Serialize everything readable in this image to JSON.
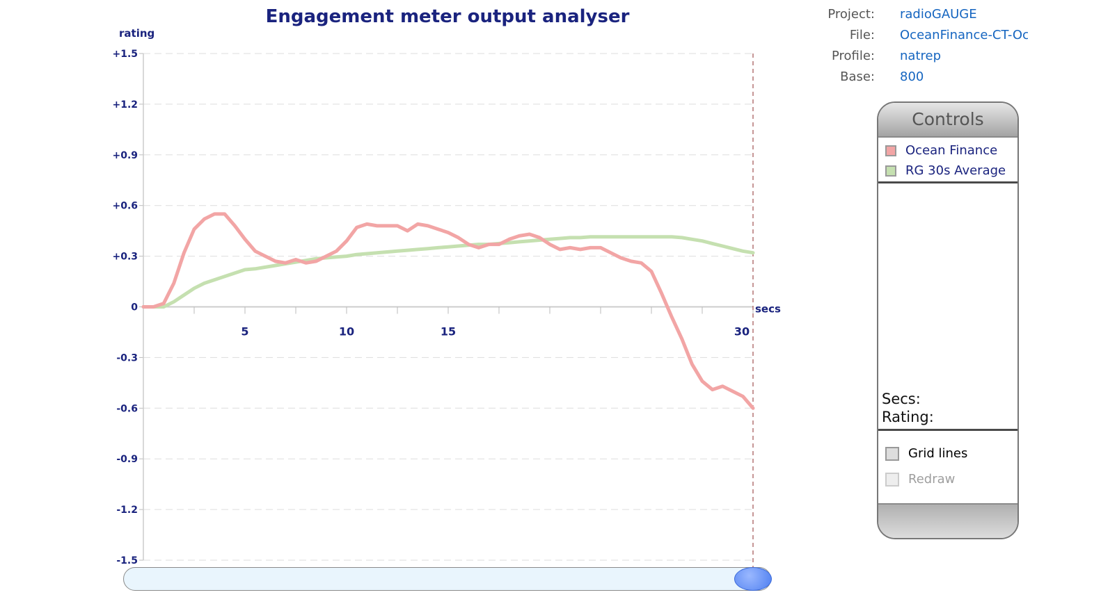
{
  "chart_data": {
    "type": "line",
    "title": "Engagement meter output analyser",
    "ylabel": "rating",
    "xlabel": "secs",
    "ylim": [
      -1.5,
      1.5
    ],
    "xlim": [
      0,
      30
    ],
    "y_ticks": [
      {
        "value": 1.5,
        "label": "+1.5"
      },
      {
        "value": 1.2,
        "label": "+1.2"
      },
      {
        "value": 0.9,
        "label": "+0.9"
      },
      {
        "value": 0.6,
        "label": "+0.6"
      },
      {
        "value": 0.3,
        "label": "+0.3"
      },
      {
        "value": 0,
        "label": "0"
      },
      {
        "value": -0.3,
        "label": "-0.3"
      },
      {
        "value": -0.6,
        "label": "-0.6"
      },
      {
        "value": -0.9,
        "label": "-0.9"
      },
      {
        "value": -1.2,
        "label": "-1.2"
      },
      {
        "value": -1.5,
        "label": "-1.5"
      }
    ],
    "x_ticks": [
      2.5,
      5,
      7.5,
      10,
      12.5,
      15,
      17.5,
      20,
      22.5,
      25,
      27.5,
      30
    ],
    "x_tick_labels": [
      {
        "value": 5,
        "label": "5"
      },
      {
        "value": 10,
        "label": "10"
      },
      {
        "value": 15,
        "label": "15"
      },
      {
        "value": 30,
        "label": "30"
      }
    ],
    "grid": true,
    "cursor_x": 30,
    "series": [
      {
        "name": "Ocean Finance",
        "color": "#f2a5a5",
        "x": [
          0,
          0.5,
          1,
          1.5,
          2,
          2.5,
          3,
          3.5,
          4,
          4.5,
          5,
          5.5,
          6,
          6.5,
          7,
          7.5,
          8,
          8.5,
          9,
          9.5,
          10,
          10.5,
          11,
          11.5,
          12,
          12.5,
          13,
          13.5,
          14,
          14.5,
          15,
          15.5,
          16,
          16.5,
          17,
          17.5,
          18,
          18.5,
          19,
          19.5,
          20,
          20.5,
          21,
          21.5,
          22,
          22.5,
          23,
          23.5,
          24,
          24.5,
          25,
          25.5,
          26,
          26.5,
          27,
          27.5,
          28,
          28.5,
          29,
          29.5,
          30
        ],
        "values": [
          0,
          0,
          0.02,
          0.14,
          0.32,
          0.46,
          0.52,
          0.55,
          0.55,
          0.48,
          0.4,
          0.33,
          0.3,
          0.27,
          0.26,
          0.28,
          0.26,
          0.27,
          0.3,
          0.33,
          0.39,
          0.47,
          0.49,
          0.48,
          0.48,
          0.48,
          0.45,
          0.49,
          0.48,
          0.46,
          0.44,
          0.41,
          0.37,
          0.35,
          0.37,
          0.37,
          0.4,
          0.42,
          0.43,
          0.41,
          0.37,
          0.34,
          0.35,
          0.34,
          0.35,
          0.35,
          0.32,
          0.29,
          0.27,
          0.26,
          0.21,
          0.08,
          -0.06,
          -0.19,
          -0.34,
          -0.44,
          -0.49,
          -0.47,
          -0.5,
          -0.53,
          -0.6
        ]
      },
      {
        "name": "RG 30s Average",
        "color": "#c5e0b0",
        "x": [
          0,
          0.5,
          1,
          1.5,
          2,
          2.5,
          3,
          3.5,
          4,
          4.5,
          5,
          5.5,
          6,
          6.5,
          7,
          7.5,
          8,
          8.5,
          9,
          9.5,
          10,
          10.5,
          11,
          11.5,
          12,
          12.5,
          13,
          13.5,
          14,
          14.5,
          15,
          15.5,
          16,
          16.5,
          17,
          17.5,
          18,
          18.5,
          19,
          19.5,
          20,
          20.5,
          21,
          21.5,
          22,
          22.5,
          23,
          23.5,
          24,
          24.5,
          25,
          25.5,
          26,
          26.5,
          27,
          27.5,
          28,
          28.5,
          29,
          29.5,
          30
        ],
        "values": [
          0,
          0,
          0,
          0.03,
          0.07,
          0.11,
          0.14,
          0.16,
          0.18,
          0.2,
          0.22,
          0.225,
          0.235,
          0.245,
          0.255,
          0.265,
          0.275,
          0.285,
          0.29,
          0.295,
          0.3,
          0.31,
          0.315,
          0.32,
          0.325,
          0.33,
          0.335,
          0.34,
          0.345,
          0.35,
          0.355,
          0.36,
          0.365,
          0.37,
          0.37,
          0.375,
          0.38,
          0.385,
          0.39,
          0.395,
          0.4,
          0.405,
          0.41,
          0.41,
          0.415,
          0.415,
          0.415,
          0.415,
          0.415,
          0.415,
          0.415,
          0.415,
          0.415,
          0.41,
          0.4,
          0.39,
          0.375,
          0.36,
          0.345,
          0.33,
          0.32
        ]
      }
    ]
  },
  "info": {
    "rows": [
      {
        "label": "Project:",
        "value": "radioGAUGE"
      },
      {
        "label": "File:",
        "value": "OceanFinance-CT-Oc"
      },
      {
        "label": "Profile:",
        "value": "natrep"
      },
      {
        "label": "Base:",
        "value": "800"
      }
    ]
  },
  "controls": {
    "title": "Controls",
    "legend": [
      {
        "label": "Ocean Finance",
        "color": "#f2a5a5"
      },
      {
        "label": "RG 30s Average",
        "color": "#c5e0b0"
      }
    ],
    "secs_label": "Secs:",
    "rating_label": "Rating:",
    "grid_lines_label": "Grid lines",
    "redraw_label": "Redraw"
  }
}
